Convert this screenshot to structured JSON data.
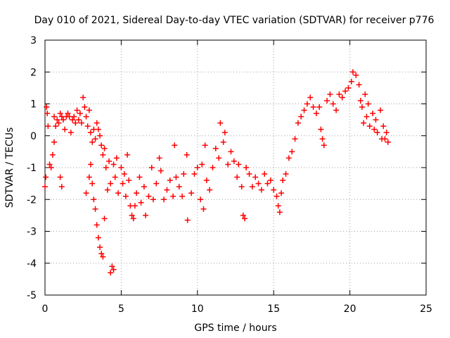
{
  "chart_data": {
    "type": "scatter",
    "title": "Day 010 of 2021, Sidereal Day-to-day VTEC variation (SDTVAR) for receiver p776",
    "xlabel": "GPS time / hours",
    "ylabel": "SDTVAR / TECUs",
    "xlim": [
      0,
      25
    ],
    "ylim": [
      -5,
      3
    ],
    "x_ticks": [
      0,
      5,
      10,
      15,
      20,
      25
    ],
    "y_ticks": [
      -5,
      -4,
      -3,
      -2,
      -1,
      0,
      1,
      2,
      3
    ],
    "grid": true,
    "marker": "+",
    "series": [
      {
        "name": "SDTVAR",
        "color": "#ff0000",
        "points": [
          [
            0.0,
            -1.6
          ],
          [
            0.05,
            -1.3
          ],
          [
            0.1,
            0.9
          ],
          [
            0.15,
            0.7
          ],
          [
            0.2,
            0.3
          ],
          [
            0.3,
            -0.9
          ],
          [
            0.4,
            -1.0
          ],
          [
            0.5,
            -0.6
          ],
          [
            0.6,
            -0.2
          ],
          [
            0.6,
            0.6
          ],
          [
            0.7,
            0.3
          ],
          [
            0.8,
            0.5
          ],
          [
            0.9,
            0.4
          ],
          [
            1.0,
            0.7
          ],
          [
            1.1,
            0.6
          ],
          [
            1.0,
            -1.3
          ],
          [
            1.1,
            -1.6
          ],
          [
            1.2,
            0.5
          ],
          [
            1.3,
            0.2
          ],
          [
            1.4,
            0.6
          ],
          [
            1.5,
            0.7
          ],
          [
            1.6,
            0.6
          ],
          [
            1.7,
            0.1
          ],
          [
            1.8,
            0.5
          ],
          [
            1.9,
            0.6
          ],
          [
            2.0,
            0.4
          ],
          [
            2.1,
            0.8
          ],
          [
            2.2,
            0.5
          ],
          [
            2.3,
            0.7
          ],
          [
            2.4,
            0.4
          ],
          [
            2.5,
            1.2
          ],
          [
            2.6,
            0.9
          ],
          [
            2.7,
            0.6
          ],
          [
            2.8,
            0.3
          ],
          [
            2.9,
            0.8
          ],
          [
            3.0,
            0.1
          ],
          [
            3.1,
            -0.2
          ],
          [
            3.2,
            0.2
          ],
          [
            3.3,
            -0.1
          ],
          [
            3.4,
            0.4
          ],
          [
            3.5,
            0.2
          ],
          [
            3.6,
            0.0
          ],
          [
            3.7,
            -0.3
          ],
          [
            3.8,
            -0.6
          ],
          [
            3.9,
            -0.4
          ],
          [
            2.7,
            -1.8
          ],
          [
            2.9,
            -1.3
          ],
          [
            3.0,
            -0.9
          ],
          [
            3.1,
            -1.5
          ],
          [
            3.2,
            -2.0
          ],
          [
            3.3,
            -2.3
          ],
          [
            3.4,
            -2.8
          ],
          [
            3.5,
            -3.2
          ],
          [
            3.6,
            -3.5
          ],
          [
            3.7,
            -3.7
          ],
          [
            3.8,
            -3.8
          ],
          [
            3.9,
            -2.6
          ],
          [
            4.0,
            -1.0
          ],
          [
            4.1,
            -1.7
          ],
          [
            4.2,
            -0.8
          ],
          [
            4.3,
            -1.5
          ],
          [
            4.4,
            -4.1
          ],
          [
            4.5,
            -4.2
          ],
          [
            4.3,
            -4.3
          ],
          [
            4.5,
            -0.9
          ],
          [
            4.6,
            -1.3
          ],
          [
            4.7,
            -0.7
          ],
          [
            4.8,
            -1.8
          ],
          [
            5.0,
            -1.0
          ],
          [
            5.1,
            -1.5
          ],
          [
            5.2,
            -1.2
          ],
          [
            5.3,
            -1.9
          ],
          [
            5.4,
            -0.6
          ],
          [
            5.5,
            -1.4
          ],
          [
            5.6,
            -2.2
          ],
          [
            5.7,
            -2.5
          ],
          [
            5.8,
            -2.6
          ],
          [
            5.9,
            -2.2
          ],
          [
            6.0,
            -1.8
          ],
          [
            6.2,
            -1.3
          ],
          [
            6.3,
            -2.1
          ],
          [
            6.5,
            -1.6
          ],
          [
            6.6,
            -2.5
          ],
          [
            6.8,
            -1.9
          ],
          [
            7.0,
            -1.0
          ],
          [
            7.1,
            -2.0
          ],
          [
            7.3,
            -1.5
          ],
          [
            7.5,
            -0.7
          ],
          [
            7.6,
            -1.1
          ],
          [
            7.8,
            -2.0
          ],
          [
            8.0,
            -1.7
          ],
          [
            8.2,
            -1.4
          ],
          [
            8.4,
            -1.9
          ],
          [
            8.5,
            -0.3
          ],
          [
            8.6,
            -1.3
          ],
          [
            8.8,
            -1.6
          ],
          [
            9.0,
            -1.9
          ],
          [
            9.1,
            -1.2
          ],
          [
            9.3,
            -0.6
          ],
          [
            9.35,
            -2.65
          ],
          [
            9.6,
            -1.8
          ],
          [
            9.8,
            -1.2
          ],
          [
            10.0,
            -1.0
          ],
          [
            10.2,
            -2.0
          ],
          [
            10.3,
            -0.9
          ],
          [
            10.4,
            -2.3
          ],
          [
            10.5,
            -0.3
          ],
          [
            10.6,
            -1.4
          ],
          [
            10.8,
            -1.7
          ],
          [
            11.0,
            -1.0
          ],
          [
            11.2,
            -0.4
          ],
          [
            11.4,
            -0.7
          ],
          [
            11.5,
            0.4
          ],
          [
            11.7,
            -0.2
          ],
          [
            11.8,
            0.1
          ],
          [
            12.0,
            -0.9
          ],
          [
            12.2,
            -0.5
          ],
          [
            12.4,
            -0.8
          ],
          [
            12.6,
            -1.3
          ],
          [
            12.7,
            -0.9
          ],
          [
            12.9,
            -1.6
          ],
          [
            13.0,
            -2.5
          ],
          [
            13.1,
            -2.6
          ],
          [
            13.2,
            -1.0
          ],
          [
            13.4,
            -1.2
          ],
          [
            13.6,
            -1.6
          ],
          [
            13.8,
            -1.3
          ],
          [
            14.0,
            -1.5
          ],
          [
            14.2,
            -1.7
          ],
          [
            14.4,
            -1.2
          ],
          [
            14.6,
            -1.5
          ],
          [
            14.8,
            -1.4
          ],
          [
            15.0,
            -1.7
          ],
          [
            15.2,
            -1.9
          ],
          [
            15.3,
            -2.2
          ],
          [
            15.4,
            -2.4
          ],
          [
            15.5,
            -1.8
          ],
          [
            15.6,
            -1.4
          ],
          [
            15.8,
            -1.2
          ],
          [
            16.0,
            -0.7
          ],
          [
            16.2,
            -0.5
          ],
          [
            16.4,
            -0.1
          ],
          [
            16.6,
            0.4
          ],
          [
            16.8,
            0.6
          ],
          [
            17.0,
            0.8
          ],
          [
            17.2,
            1.0
          ],
          [
            17.4,
            1.2
          ],
          [
            17.6,
            0.9
          ],
          [
            17.8,
            0.7
          ],
          [
            18.0,
            0.9
          ],
          [
            18.1,
            0.2
          ],
          [
            18.2,
            -0.1
          ],
          [
            18.3,
            -0.3
          ],
          [
            18.5,
            1.1
          ],
          [
            18.7,
            1.3
          ],
          [
            18.9,
            1.0
          ],
          [
            19.1,
            0.8
          ],
          [
            19.3,
            1.3
          ],
          [
            19.5,
            1.2
          ],
          [
            19.7,
            1.4
          ],
          [
            19.9,
            1.5
          ],
          [
            20.1,
            1.7
          ],
          [
            20.2,
            2.0
          ],
          [
            20.4,
            1.9
          ],
          [
            20.6,
            1.6
          ],
          [
            20.7,
            1.1
          ],
          [
            20.8,
            0.9
          ],
          [
            20.9,
            0.4
          ],
          [
            21.0,
            1.3
          ],
          [
            21.1,
            0.6
          ],
          [
            21.2,
            1.0
          ],
          [
            21.3,
            0.3
          ],
          [
            21.5,
            0.7
          ],
          [
            21.6,
            0.2
          ],
          [
            21.7,
            0.5
          ],
          [
            21.8,
            0.1
          ],
          [
            22.0,
            0.8
          ],
          [
            22.1,
            -0.1
          ],
          [
            22.2,
            0.3
          ],
          [
            22.3,
            -0.1
          ],
          [
            22.4,
            0.1
          ],
          [
            22.5,
            -0.2
          ]
        ]
      }
    ]
  }
}
